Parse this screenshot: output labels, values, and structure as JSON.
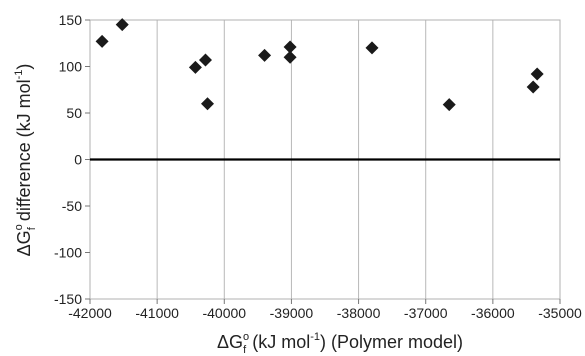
{
  "chart_data": {
    "type": "scatter",
    "xlabel": {
      "prefix": "ΔG",
      "sup": "o",
      "sub": "f",
      "unit_open": "(kJ mol",
      "unit_exp": "-1",
      "unit_close": ")",
      "suffix": "(Polymer model)"
    },
    "ylabel": {
      "prefix": "ΔG",
      "sup": "o",
      "sub": "f",
      "middle": "difference",
      "unit_open": "(kJ mol",
      "unit_exp": "-1",
      "unit_close": ")"
    },
    "xlim": [
      -42000,
      -35000
    ],
    "ylim": [
      -150,
      150
    ],
    "xticks": [
      -42000,
      -41000,
      -40000,
      -39000,
      -38000,
      -37000,
      -36000,
      -35000
    ],
    "yticks": [
      -150,
      -100,
      -50,
      0,
      50,
      100,
      150
    ],
    "grid": "vertical",
    "reference_line": {
      "y": 0,
      "color": "#000000"
    },
    "marker": {
      "shape": "diamond",
      "color": "#1a1a1a"
    },
    "points": [
      {
        "x": -41820,
        "y": 127
      },
      {
        "x": -41520,
        "y": 145
      },
      {
        "x": -40430,
        "y": 99
      },
      {
        "x": -40280,
        "y": 107
      },
      {
        "x": -40250,
        "y": 60
      },
      {
        "x": -39400,
        "y": 112
      },
      {
        "x": -39020,
        "y": 121
      },
      {
        "x": -39020,
        "y": 110
      },
      {
        "x": -37800,
        "y": 120
      },
      {
        "x": -36650,
        "y": 59
      },
      {
        "x": -35400,
        "y": 78
      },
      {
        "x": -35340,
        "y": 92
      }
    ]
  }
}
